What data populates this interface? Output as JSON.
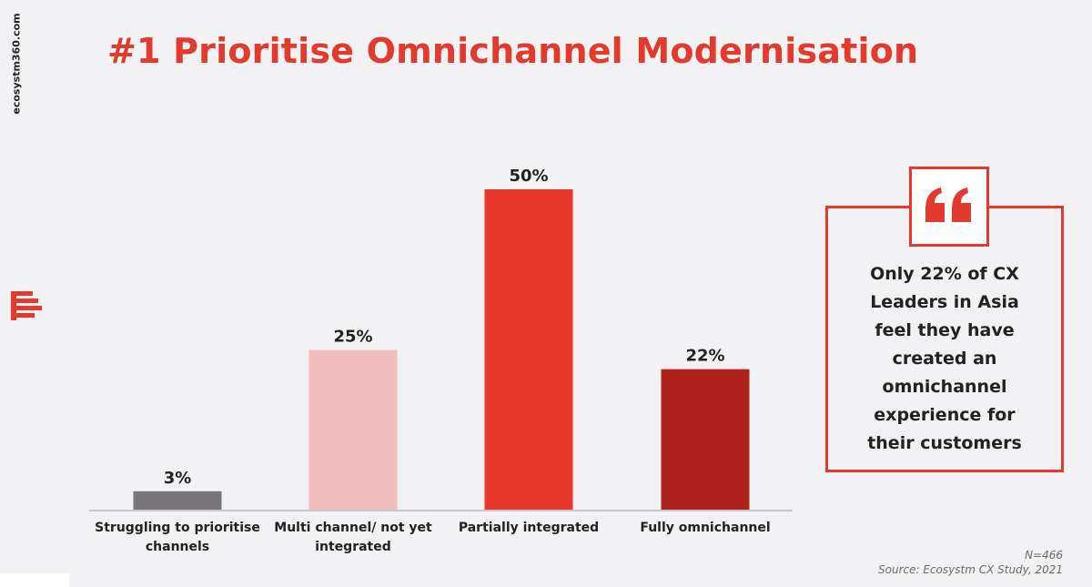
{
  "brand": {
    "site": "ecosystm360.com"
  },
  "header": {
    "title": "#1 Prioritise Omnichannel Modernisation"
  },
  "colors": {
    "accent": "#e23a2c",
    "bar_struggling": "#797679",
    "bar_multi": "#f4bdbd",
    "bar_partial": "#e8372b",
    "bar_fully": "#b0211b"
  },
  "chart_data": {
    "type": "bar",
    "categories": [
      [
        "Struggling to prioritise",
        "channels"
      ],
      [
        "Multi channel/ not yet",
        "integrated"
      ],
      [
        "Partially integrated"
      ],
      [
        "Fully omnichannel"
      ]
    ],
    "values": [
      3,
      25,
      50,
      22
    ],
    "data_labels": [
      "3%",
      "25%",
      "50%",
      "22%"
    ],
    "bar_colors": [
      "#797679",
      "#f4bdbd",
      "#e8372b",
      "#b0211b"
    ],
    "ylim": [
      0,
      50
    ],
    "grid": false,
    "title": "",
    "xlabel": "",
    "ylabel": ""
  },
  "callout": {
    "icon": "quote-icon",
    "lines": [
      "Only 22% of CX",
      "Leaders in Asia",
      "feel they have",
      "created an",
      "omnichannel",
      "experience for",
      "their customers"
    ]
  },
  "footnote": {
    "n": "N=466",
    "source": "Source: Ecosystm CX Study, 2021"
  }
}
